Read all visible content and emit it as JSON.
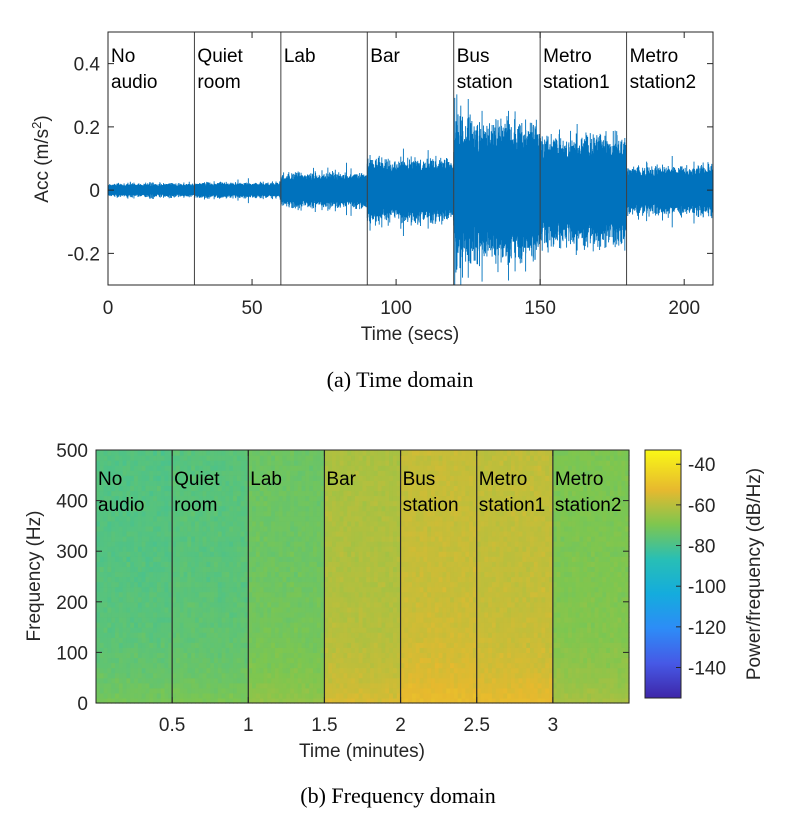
{
  "chart_data": [
    {
      "type": "line",
      "title": "",
      "caption": "(a)  Time domain",
      "xlabel": "Time (secs)",
      "ylabel": "Acc (m/s",
      "ylabel_sup": "2",
      "ylabel_tail": ")",
      "xlim": [
        0,
        210
      ],
      "ylim": [
        -0.3,
        0.5
      ],
      "xticks": [
        0,
        50,
        100,
        150,
        200
      ],
      "xtick_labels": [
        "0",
        "50",
        "100",
        "150",
        "200"
      ],
      "yticks": [
        -0.2,
        0,
        0.2,
        0.4
      ],
      "ytick_labels": [
        "-0.2",
        "0",
        "0.2",
        "0.4"
      ],
      "boundaries": [
        30,
        60,
        90,
        120,
        150,
        180
      ],
      "color": "#0072BD",
      "segments": [
        {
          "line1": "No",
          "line2": "audio",
          "start": 0,
          "end": 30,
          "amplitude": 0.02
        },
        {
          "line1": "Quiet",
          "line2": "room",
          "start": 30,
          "end": 60,
          "amplitude": 0.022
        },
        {
          "line1": "Lab",
          "line2": "",
          "start": 60,
          "end": 90,
          "amplitude": 0.05
        },
        {
          "line1": "Bar",
          "line2": "",
          "start": 90,
          "end": 120,
          "amplitude": 0.09
        },
        {
          "line1": "Bus",
          "line2": "station",
          "start": 120,
          "end": 150,
          "amplitude": 0.2
        },
        {
          "line1": "Metro",
          "line2": "station1",
          "start": 150,
          "end": 180,
          "amplitude": 0.16
        },
        {
          "line1": "Metro",
          "line2": "station2",
          "start": 180,
          "end": 210,
          "amplitude": 0.07
        }
      ]
    },
    {
      "type": "heatmap",
      "title": "",
      "caption": "(b)  Frequency domain",
      "xlabel": "Time (minutes)",
      "ylabel": "Frequency (Hz)",
      "colorbar_label": "Power/frequency (dB/Hz)",
      "xlim": [
        0,
        3.5
      ],
      "ylim": [
        0,
        500
      ],
      "xticks": [
        0.5,
        1,
        1.5,
        2,
        2.5,
        3
      ],
      "xtick_labels": [
        "0.5",
        "1",
        "1.5",
        "2",
        "2.5",
        "3"
      ],
      "yticks": [
        0,
        100,
        200,
        300,
        400,
        500
      ],
      "ytick_labels": [
        "0",
        "100",
        "200",
        "300",
        "400",
        "500"
      ],
      "boundaries": [
        0.5,
        1,
        1.5,
        2,
        2.5,
        3
      ],
      "clim": [
        -155,
        -33
      ],
      "cticks": [
        -140,
        -120,
        -100,
        -80,
        -60,
        -40
      ],
      "ctick_labels": [
        "-140",
        "-120",
        "-100",
        "-80",
        "-60",
        "-40"
      ],
      "segments": [
        {
          "line1": "No",
          "line2": "audio",
          "start": 0,
          "end": 0.5,
          "power_db": -78
        },
        {
          "line1": "Quiet",
          "line2": "room",
          "start": 0.5,
          "end": 1,
          "power_db": -77
        },
        {
          "line1": "Lab",
          "line2": "",
          "start": 1,
          "end": 1.5,
          "power_db": -73
        },
        {
          "line1": "Bar",
          "line2": "",
          "start": 1.5,
          "end": 2,
          "power_db": -62
        },
        {
          "line1": "Bus",
          "line2": "station",
          "start": 2,
          "end": 2.5,
          "power_db": -58
        },
        {
          "line1": "Metro",
          "line2": "station1",
          "start": 2.5,
          "end": 3,
          "power_db": -59
        },
        {
          "line1": "Metro",
          "line2": "station2",
          "start": 3,
          "end": 3.5,
          "power_db": -70
        }
      ]
    }
  ]
}
